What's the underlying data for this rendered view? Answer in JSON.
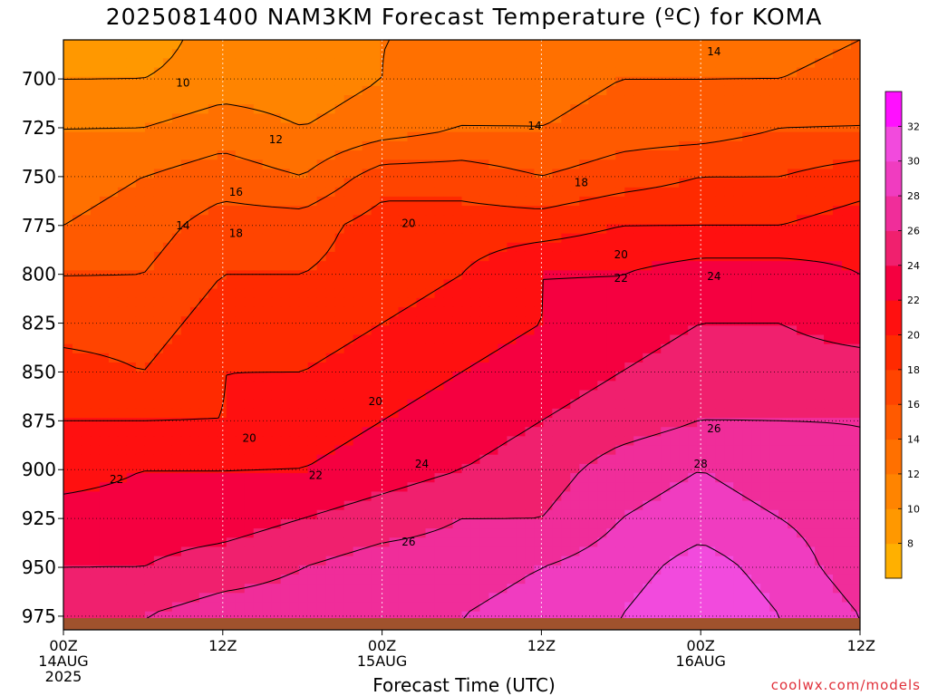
{
  "title": "2025081400 NAM3KM Forecast Temperature (ºC) for KOMA",
  "watermark": "coolwx.com/models",
  "chart_data": {
    "type": "heatmap",
    "title": "2025081400 NAM3KM Forecast Temperature (ºC) for KOMA",
    "xlabel": "Forecast Time (UTC)",
    "ylabel": "",
    "y_axis_ticks": [
      700,
      725,
      750,
      775,
      800,
      825,
      850,
      875,
      900,
      925,
      950,
      975
    ],
    "y_axis_reversed": true,
    "y_range_hPa": [
      680,
      982
    ],
    "x_range_hours": [
      0,
      60
    ],
    "x_ticks": [
      {
        "hour": 0,
        "labels": [
          "00Z",
          "14AUG",
          "2025"
        ]
      },
      {
        "hour": 12,
        "labels": [
          "12Z"
        ]
      },
      {
        "hour": 24,
        "labels": [
          "00Z",
          "15AUG"
        ]
      },
      {
        "hour": 36,
        "labels": [
          "12Z"
        ]
      },
      {
        "hour": 48,
        "labels": [
          "00Z",
          "16AUG"
        ]
      },
      {
        "hour": 60,
        "labels": [
          "12Z"
        ]
      }
    ],
    "grid": true,
    "colorbar": {
      "levels": [
        6,
        8,
        10,
        12,
        14,
        16,
        18,
        20,
        22,
        24,
        26,
        28,
        30,
        32,
        34
      ],
      "labels": [
        8,
        10,
        12,
        14,
        16,
        18,
        20,
        22,
        24,
        26,
        28,
        30,
        32
      ],
      "colors": [
        "#FFB000",
        "#FF9800",
        "#FF8400",
        "#FF7000",
        "#FF5A00",
        "#FF4400",
        "#FF2A00",
        "#FF1010",
        "#F50040",
        "#F0206E",
        "#F02D9A",
        "#F03CC0",
        "#F24ADD",
        "#FF10FF"
      ]
    },
    "contour_labels": [
      {
        "value": "10",
        "hour": 9,
        "pres": 702
      },
      {
        "value": "12",
        "hour": 16,
        "pres": 731
      },
      {
        "value": "14",
        "hour": 49,
        "pres": 686
      },
      {
        "value": "14",
        "hour": 35.5,
        "pres": 724
      },
      {
        "value": "14",
        "hour": 9,
        "pres": 775
      },
      {
        "value": "16",
        "hour": 13,
        "pres": 758
      },
      {
        "value": "18",
        "hour": 13,
        "pres": 779
      },
      {
        "value": "18",
        "hour": 39,
        "pres": 753
      },
      {
        "value": "20",
        "hour": 26,
        "pres": 774
      },
      {
        "value": "20",
        "hour": 42,
        "pres": 790
      },
      {
        "value": "20",
        "hour": 23.5,
        "pres": 865
      },
      {
        "value": "20",
        "hour": 14,
        "pres": 884
      },
      {
        "value": "22",
        "hour": 42,
        "pres": 802
      },
      {
        "value": "22",
        "hour": 19,
        "pres": 903
      },
      {
        "value": "22",
        "hour": 4,
        "pres": 905
      },
      {
        "value": "24",
        "hour": 49,
        "pres": 801
      },
      {
        "value": "24",
        "hour": 27,
        "pres": 897
      },
      {
        "value": "26",
        "hour": 49,
        "pres": 879
      },
      {
        "value": "26",
        "hour": 26,
        "pres": 937
      },
      {
        "value": "28",
        "hour": 48,
        "pres": 897
      }
    ],
    "temperature_grid": {
      "hours": [
        0,
        6,
        12,
        18,
        24,
        30,
        36,
        42,
        48,
        54,
        60
      ],
      "pressures_hPa": [
        680,
        700,
        725,
        750,
        775,
        800,
        825,
        850,
        875,
        900,
        925,
        950,
        975
      ],
      "values_C": [
        [
          8,
          9,
          11,
          11,
          12,
          12,
          12,
          13,
          13,
          13,
          14
        ],
        [
          10,
          10,
          11,
          11,
          12,
          13,
          13,
          14,
          14,
          14,
          15
        ],
        [
          12,
          12,
          13,
          12,
          13,
          14,
          14,
          15,
          15,
          16,
          16
        ],
        [
          13,
          14,
          15,
          14,
          17,
          17,
          16,
          17,
          18,
          18,
          19
        ],
        [
          14,
          15,
          17,
          17,
          19,
          19,
          19,
          20,
          20,
          20,
          21
        ],
        [
          16,
          16,
          18,
          18,
          19,
          20,
          22,
          22,
          23,
          23,
          22
        ],
        [
          17,
          17,
          19,
          19,
          20,
          21,
          22,
          23,
          24,
          24,
          23
        ],
        [
          19,
          18,
          20,
          20,
          21,
          22,
          23,
          24,
          25,
          25,
          25
        ],
        [
          20,
          20,
          20,
          21,
          22,
          23,
          24,
          25,
          26,
          26,
          26
        ],
        [
          21,
          22,
          22,
          22,
          23,
          24,
          25,
          27,
          28,
          27,
          26
        ],
        [
          23,
          23,
          23,
          24,
          25,
          26,
          26,
          28,
          29,
          28,
          27
        ],
        [
          24,
          24,
          25,
          26,
          27,
          27,
          28,
          29,
          31,
          29,
          27
        ],
        [
          25,
          26,
          27,
          27,
          28,
          28,
          29,
          30,
          32,
          30,
          28
        ]
      ]
    },
    "ground": {
      "top_pres": 976,
      "color": "#A0522D"
    }
  }
}
